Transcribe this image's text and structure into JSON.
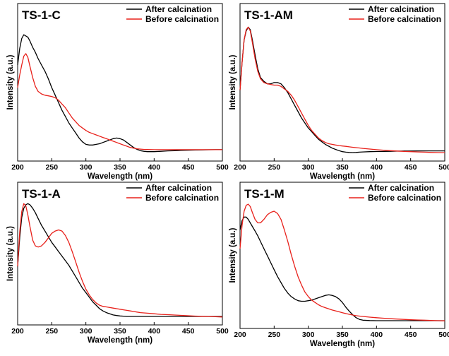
{
  "chart_data": [
    {
      "type": "line",
      "title": "TS-1-C",
      "xlabel": "Wavelength (nm)",
      "ylabel": "Intensity (a.u.)",
      "xlim": [
        200,
        500
      ],
      "xticks": [
        "200",
        "250",
        "300",
        "350",
        "400",
        "450",
        "500"
      ],
      "legend_position": "top-right",
      "series": [
        {
          "name": "After calcination",
          "color": "#000000",
          "x": [
            200,
            203,
            206,
            209,
            212,
            215,
            218,
            222,
            226,
            230,
            235,
            240,
            245,
            250,
            255,
            260,
            265,
            270,
            275,
            280,
            285,
            290,
            295,
            300,
            305,
            310,
            315,
            320,
            325,
            330,
            335,
            340,
            345,
            350,
            355,
            360,
            365,
            370,
            375,
            380,
            385,
            390,
            400,
            410,
            420,
            430,
            440,
            450,
            460,
            470,
            480,
            490,
            500
          ],
          "y": [
            0.7,
            0.83,
            0.91,
            0.94,
            0.93,
            0.92,
            0.89,
            0.84,
            0.8,
            0.75,
            0.7,
            0.65,
            0.59,
            0.52,
            0.46,
            0.4,
            0.34,
            0.29,
            0.24,
            0.2,
            0.16,
            0.12,
            0.09,
            0.07,
            0.065,
            0.065,
            0.07,
            0.075,
            0.085,
            0.095,
            0.105,
            0.115,
            0.12,
            0.115,
            0.105,
            0.085,
            0.065,
            0.045,
            0.03,
            0.02,
            0.015,
            0.012,
            0.012,
            0.015,
            0.018,
            0.02,
            0.022,
            0.024,
            0.025,
            0.026,
            0.027,
            0.028,
            0.028
          ]
        },
        {
          "name": "Before calcination",
          "color": "#e8201a",
          "x": [
            200,
            203,
            206,
            209,
            212,
            215,
            218,
            222,
            226,
            230,
            235,
            240,
            245,
            250,
            255,
            260,
            265,
            270,
            275,
            280,
            285,
            290,
            295,
            300,
            305,
            310,
            315,
            320,
            325,
            330,
            335,
            340,
            345,
            350,
            355,
            360,
            365,
            370,
            375,
            380,
            385,
            390,
            400,
            410,
            420,
            430,
            440,
            450,
            460,
            470,
            480,
            490,
            500
          ],
          "y": [
            0.52,
            0.62,
            0.7,
            0.77,
            0.79,
            0.76,
            0.69,
            0.6,
            0.53,
            0.49,
            0.47,
            0.46,
            0.455,
            0.45,
            0.44,
            0.42,
            0.39,
            0.36,
            0.32,
            0.28,
            0.25,
            0.22,
            0.2,
            0.18,
            0.165,
            0.155,
            0.145,
            0.135,
            0.125,
            0.115,
            0.105,
            0.095,
            0.085,
            0.075,
            0.065,
            0.055,
            0.045,
            0.04,
            0.035,
            0.032,
            0.03,
            0.029,
            0.028,
            0.028,
            0.028,
            0.028,
            0.028,
            0.028,
            0.028,
            0.028,
            0.028,
            0.028,
            0.028
          ]
        }
      ]
    },
    {
      "type": "line",
      "title": "TS-1-AM",
      "xlabel": "Wavelength (nm)",
      "ylabel": "Intensity (a.u.)",
      "xlim": [
        200,
        500
      ],
      "xticks": [
        "200",
        "250",
        "300",
        "350",
        "400",
        "450",
        "500"
      ],
      "legend_position": "top-right",
      "series": [
        {
          "name": "After calcination",
          "color": "#000000",
          "x": [
            200,
            203,
            206,
            209,
            212,
            215,
            218,
            222,
            226,
            230,
            235,
            240,
            245,
            250,
            255,
            260,
            265,
            270,
            275,
            280,
            285,
            290,
            295,
            300,
            305,
            310,
            315,
            320,
            325,
            330,
            335,
            340,
            345,
            350,
            355,
            360,
            365,
            370,
            375,
            380,
            390,
            400,
            410,
            420,
            430,
            440,
            450,
            460,
            470,
            480,
            490,
            500
          ],
          "y": [
            0.5,
            0.72,
            0.9,
            0.97,
            1.0,
            0.98,
            0.9,
            0.78,
            0.67,
            0.6,
            0.57,
            0.55,
            0.55,
            0.56,
            0.56,
            0.55,
            0.52,
            0.48,
            0.43,
            0.38,
            0.33,
            0.28,
            0.24,
            0.2,
            0.17,
            0.14,
            0.11,
            0.09,
            0.07,
            0.055,
            0.04,
            0.03,
            0.02,
            0.012,
            0.008,
            0.006,
            0.005,
            0.006,
            0.008,
            0.01,
            0.012,
            0.013,
            0.014,
            0.015,
            0.016,
            0.017,
            0.017,
            0.018,
            0.018,
            0.018,
            0.018,
            0.018
          ]
        },
        {
          "name": "Before calcination",
          "color": "#e8201a",
          "x": [
            200,
            203,
            206,
            209,
            212,
            215,
            218,
            222,
            226,
            230,
            235,
            240,
            245,
            250,
            255,
            260,
            265,
            270,
            275,
            280,
            285,
            290,
            295,
            300,
            305,
            310,
            315,
            320,
            325,
            330,
            335,
            340,
            345,
            350,
            355,
            360,
            365,
            370,
            375,
            380,
            390,
            400,
            410,
            420,
            430,
            440,
            450,
            460,
            470,
            480,
            490,
            500
          ],
          "y": [
            0.5,
            0.72,
            0.9,
            0.98,
            1.0,
            0.97,
            0.88,
            0.75,
            0.65,
            0.59,
            0.56,
            0.55,
            0.545,
            0.54,
            0.54,
            0.53,
            0.51,
            0.49,
            0.46,
            0.42,
            0.37,
            0.32,
            0.27,
            0.22,
            0.18,
            0.15,
            0.12,
            0.1,
            0.085,
            0.075,
            0.07,
            0.065,
            0.06,
            0.057,
            0.054,
            0.05,
            0.047,
            0.044,
            0.041,
            0.038,
            0.033,
            0.028,
            0.024,
            0.02,
            0.017,
            0.014,
            0.012,
            0.01,
            0.008,
            0.006,
            0.005,
            0.004
          ]
        }
      ]
    },
    {
      "type": "line",
      "title": "TS-1-A",
      "xlabel": "Wavelength (nm)",
      "ylabel": "Intensity (a.u.)",
      "xlim": [
        200,
        500
      ],
      "xticks": [
        "200",
        "250",
        "300",
        "350",
        "400",
        "450",
        "500"
      ],
      "legend_position": "top-right",
      "series": [
        {
          "name": "After calcination",
          "color": "#000000",
          "x": [
            200,
            203,
            206,
            209,
            212,
            215,
            218,
            222,
            226,
            230,
            235,
            240,
            245,
            250,
            255,
            260,
            265,
            270,
            275,
            280,
            285,
            290,
            295,
            300,
            305,
            310,
            315,
            320,
            325,
            330,
            335,
            340,
            345,
            350,
            355,
            360,
            365,
            370,
            375,
            380,
            390,
            400,
            410,
            420,
            430,
            440,
            450,
            460,
            470,
            480,
            490,
            500
          ],
          "y": [
            0.45,
            0.7,
            0.88,
            0.96,
            0.99,
            1.0,
            0.99,
            0.96,
            0.92,
            0.87,
            0.81,
            0.76,
            0.71,
            0.66,
            0.62,
            0.58,
            0.54,
            0.5,
            0.46,
            0.41,
            0.36,
            0.31,
            0.26,
            0.22,
            0.18,
            0.14,
            0.11,
            0.08,
            0.06,
            0.045,
            0.035,
            0.025,
            0.02,
            0.016,
            0.014,
            0.012,
            0.012,
            0.012,
            0.012,
            0.012,
            0.012,
            0.012,
            0.012,
            0.012,
            0.012,
            0.012,
            0.012,
            0.012,
            0.012,
            0.012,
            0.012,
            0.012
          ]
        },
        {
          "name": "Before calcination",
          "color": "#e8201a",
          "x": [
            200,
            203,
            206,
            209,
            212,
            215,
            218,
            222,
            226,
            230,
            235,
            240,
            245,
            250,
            255,
            260,
            265,
            270,
            275,
            280,
            285,
            290,
            295,
            300,
            305,
            310,
            315,
            320,
            325,
            330,
            335,
            340,
            345,
            350,
            355,
            360,
            365,
            370,
            375,
            380,
            390,
            400,
            410,
            420,
            430,
            440,
            450,
            460,
            470,
            480,
            490,
            500
          ],
          "y": [
            0.45,
            0.75,
            0.93,
            1.0,
            0.98,
            0.9,
            0.8,
            0.68,
            0.63,
            0.62,
            0.63,
            0.66,
            0.7,
            0.74,
            0.76,
            0.77,
            0.76,
            0.72,
            0.66,
            0.58,
            0.49,
            0.4,
            0.32,
            0.25,
            0.2,
            0.16,
            0.13,
            0.11,
            0.1,
            0.095,
            0.09,
            0.085,
            0.08,
            0.075,
            0.07,
            0.065,
            0.06,
            0.055,
            0.05,
            0.045,
            0.04,
            0.035,
            0.03,
            0.027,
            0.024,
            0.021,
            0.018,
            0.015,
            0.013,
            0.011,
            0.009,
            0.007
          ]
        }
      ]
    },
    {
      "type": "line",
      "title": "TS-1-M",
      "xlabel": "Wavelength (nm)",
      "ylabel": "Intensity (a.u.)",
      "xlim": [
        200,
        500
      ],
      "xticks": [
        "200",
        "250",
        "300",
        "350",
        "400",
        "450",
        "500"
      ],
      "legend_position": "top-right",
      "series": [
        {
          "name": "After calcination",
          "color": "#000000",
          "x": [
            200,
            203,
            206,
            209,
            212,
            215,
            218,
            222,
            226,
            230,
            235,
            240,
            245,
            250,
            255,
            260,
            265,
            270,
            275,
            280,
            285,
            290,
            295,
            300,
            305,
            310,
            315,
            320,
            325,
            330,
            335,
            340,
            345,
            350,
            355,
            360,
            365,
            370,
            375,
            380,
            390,
            400,
            410,
            420,
            430,
            440,
            450,
            460,
            470,
            480,
            490,
            500
          ],
          "y": [
            0.78,
            0.86,
            0.89,
            0.89,
            0.87,
            0.84,
            0.81,
            0.77,
            0.73,
            0.68,
            0.62,
            0.56,
            0.5,
            0.44,
            0.38,
            0.33,
            0.28,
            0.24,
            0.21,
            0.19,
            0.175,
            0.17,
            0.17,
            0.175,
            0.18,
            0.19,
            0.2,
            0.21,
            0.22,
            0.225,
            0.22,
            0.21,
            0.19,
            0.16,
            0.12,
            0.085,
            0.055,
            0.03,
            0.015,
            0.008,
            0.005,
            0.004,
            0.004,
            0.004,
            0.004,
            0.004,
            0.004,
            0.004,
            0.004,
            0.004,
            0.004,
            0.004
          ]
        },
        {
          "name": "Before calcination",
          "color": "#e8201a",
          "x": [
            200,
            203,
            206,
            209,
            212,
            215,
            218,
            222,
            226,
            230,
            235,
            240,
            245,
            250,
            255,
            260,
            265,
            270,
            275,
            280,
            285,
            290,
            295,
            300,
            305,
            310,
            315,
            320,
            325,
            330,
            335,
            340,
            345,
            350,
            355,
            360,
            365,
            370,
            375,
            380,
            390,
            400,
            410,
            420,
            430,
            440,
            450,
            460,
            470,
            480,
            490,
            500
          ],
          "y": [
            0.62,
            0.82,
            0.94,
            0.99,
            1.0,
            0.98,
            0.93,
            0.87,
            0.84,
            0.84,
            0.87,
            0.91,
            0.93,
            0.94,
            0.92,
            0.87,
            0.78,
            0.68,
            0.57,
            0.47,
            0.38,
            0.31,
            0.25,
            0.21,
            0.18,
            0.16,
            0.14,
            0.125,
            0.115,
            0.105,
            0.095,
            0.088,
            0.08,
            0.072,
            0.065,
            0.058,
            0.052,
            0.047,
            0.043,
            0.04,
            0.034,
            0.029,
            0.025,
            0.021,
            0.018,
            0.015,
            0.012,
            0.01,
            0.008,
            0.006,
            0.004,
            0.003
          ]
        }
      ]
    }
  ]
}
